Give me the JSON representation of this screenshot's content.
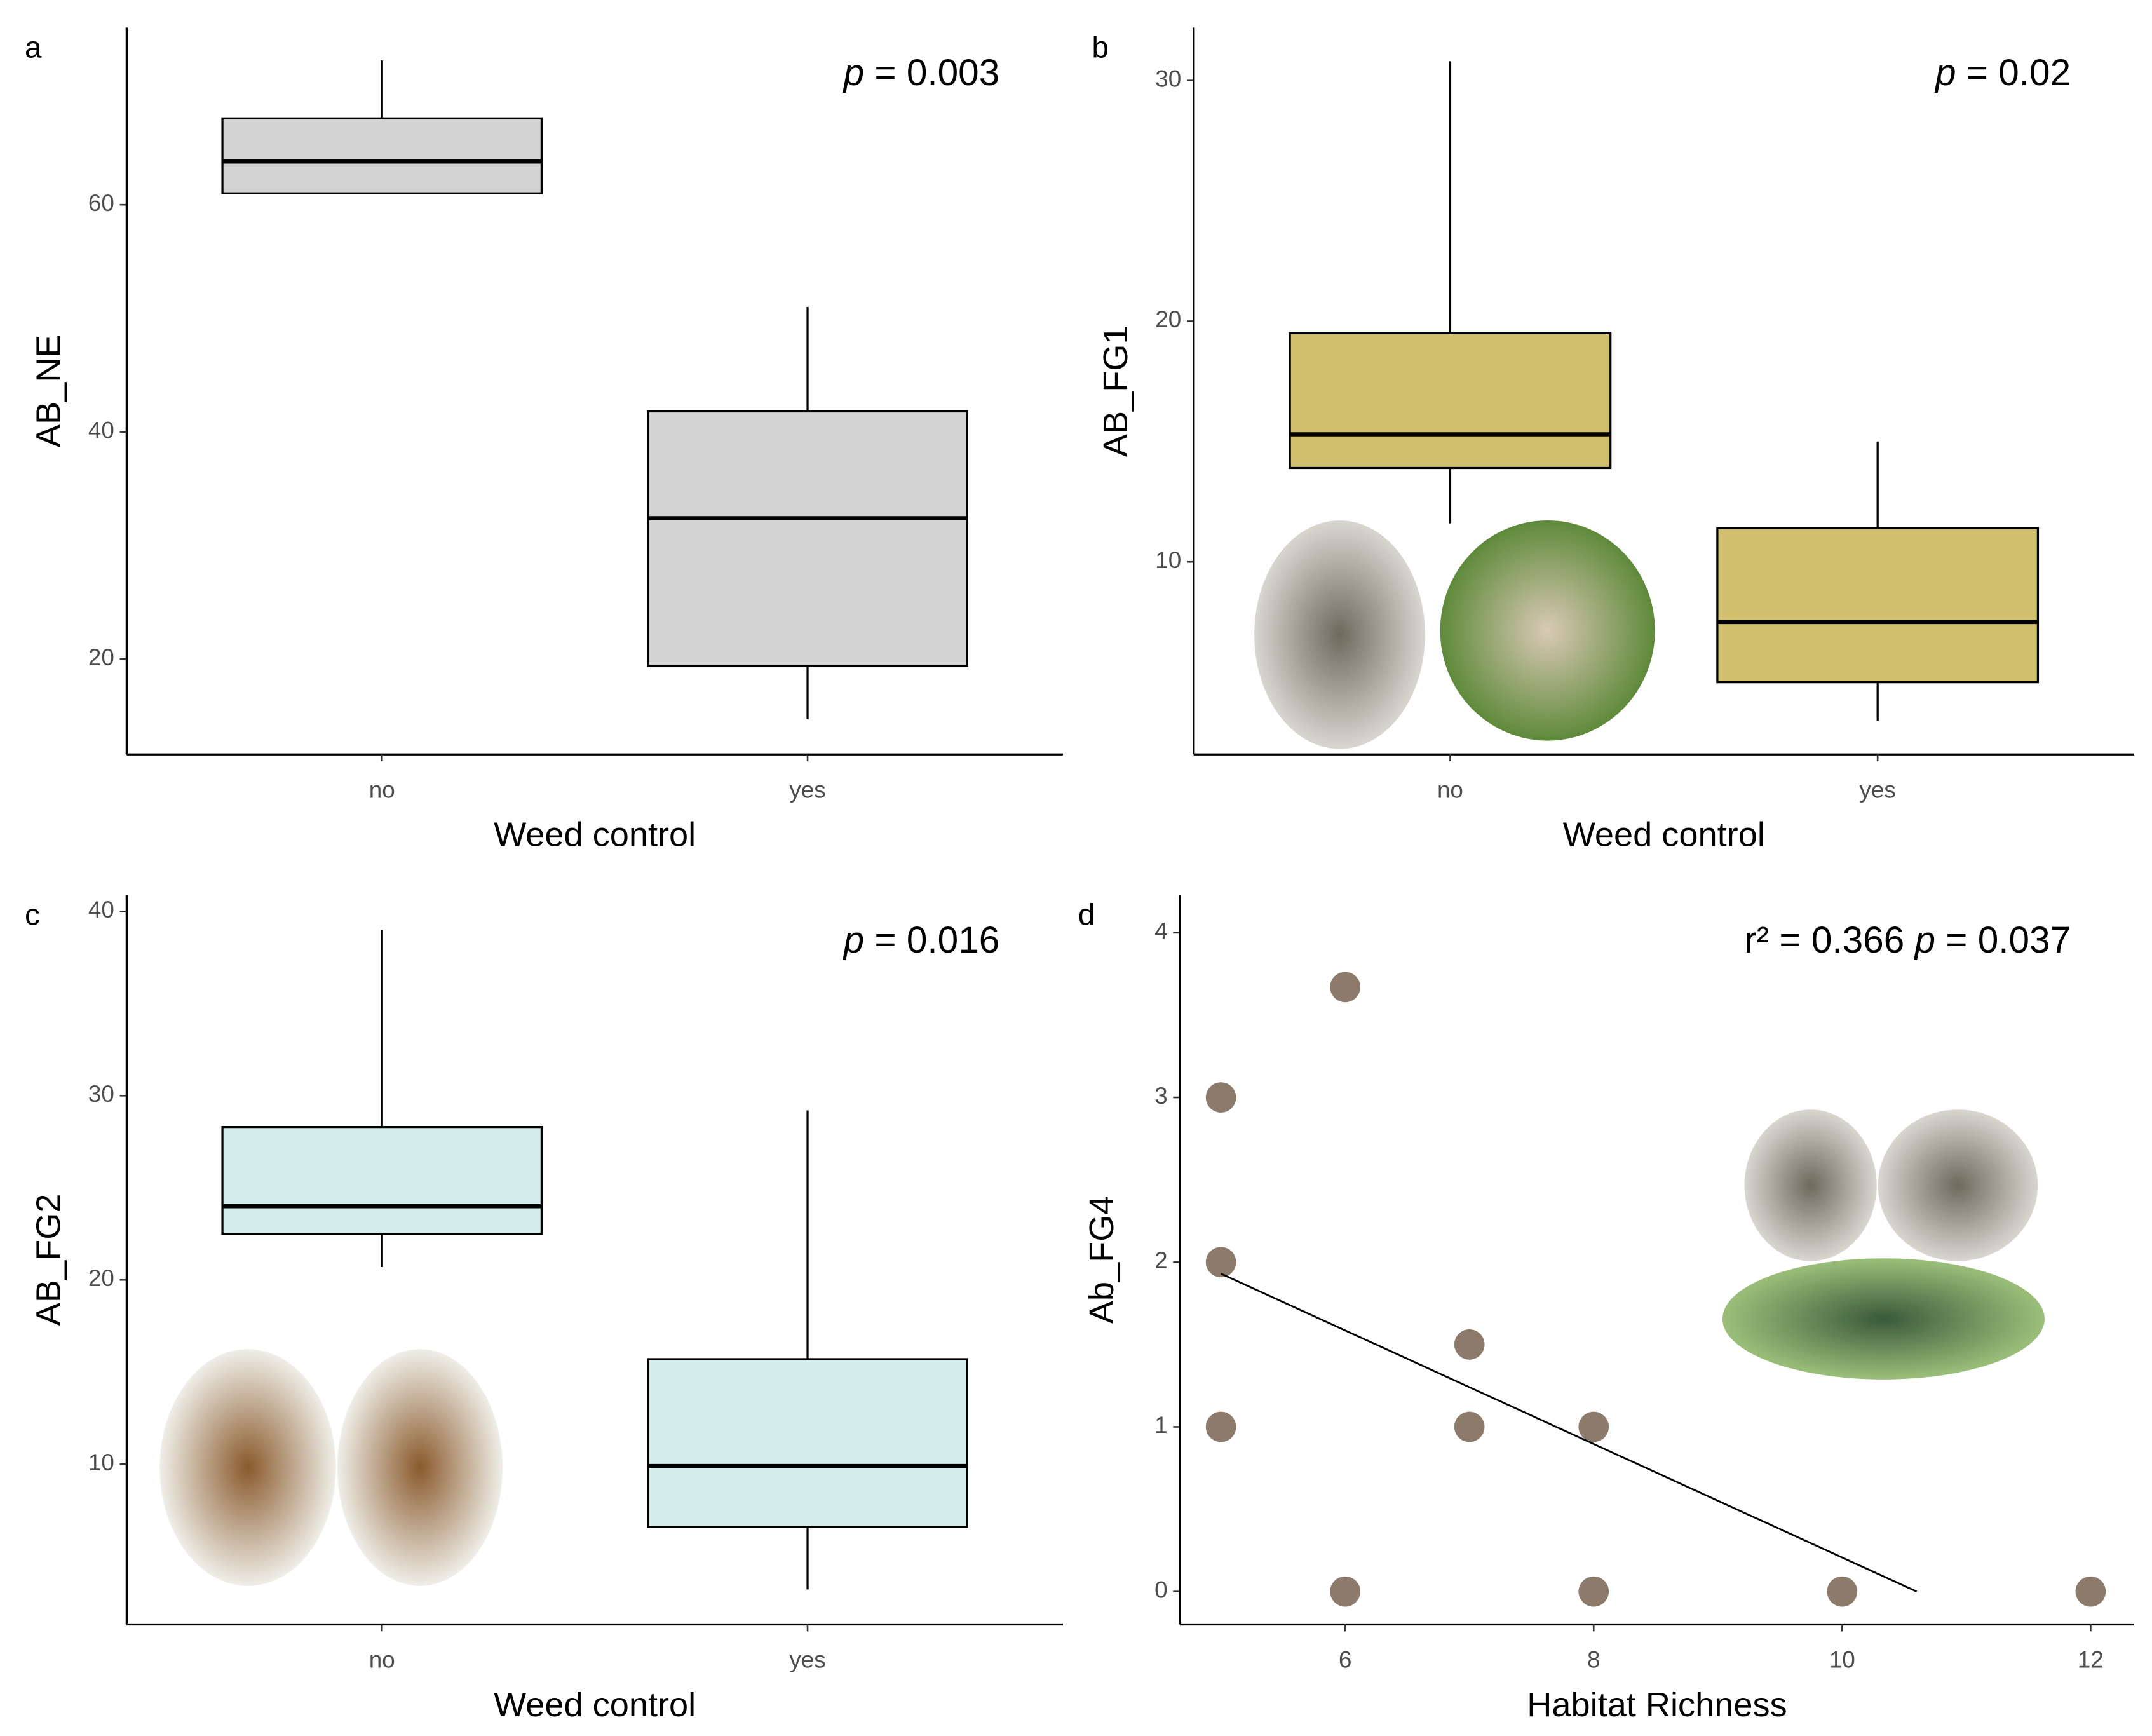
{
  "chart_data": [
    {
      "type": "box",
      "label": "a",
      "annotation": "p = 0.003",
      "x_label": "Weed control",
      "y_label": "AB_NE",
      "categories": [
        "no",
        "yes"
      ],
      "color": "#d3d3d3",
      "values": [
        {
          "min": 61.0,
          "q1": 61.0,
          "median": 63.8,
          "q3": 67.6,
          "max": 72.7
        },
        {
          "min": 14.7,
          "q1": 19.4,
          "median": 32.4,
          "q3": 41.8,
          "max": 51.0
        }
      ],
      "ylim": [
        11.6,
        75.6
      ],
      "yticks": [
        20,
        40,
        60
      ]
    },
    {
      "type": "box",
      "label": "b",
      "annotation": "p = 0.02",
      "x_label": "Weed control",
      "y_label": "AB_FG1",
      "categories": [
        "no",
        "yes"
      ],
      "color": "#cfbf6e",
      "values": [
        {
          "min": 11.6,
          "q1": 13.9,
          "median": 15.3,
          "q3": 19.5,
          "max": 30.8
        },
        {
          "min": 3.4,
          "q1": 5.0,
          "median": 7.5,
          "q3": 11.4,
          "max": 15.0
        }
      ],
      "ylim": [
        2.0,
        32.2
      ],
      "yticks": [
        10,
        20,
        30
      ]
    },
    {
      "type": "box",
      "label": "c",
      "annotation": "p = 0.016",
      "x_label": "Weed control",
      "y_label": "AB_FG2",
      "categories": [
        "no",
        "yes"
      ],
      "color": "#d3ecec",
      "values": [
        {
          "min": 20.7,
          "q1": 22.5,
          "median": 24.0,
          "q3": 28.3,
          "max": 39.0
        },
        {
          "min": 3.2,
          "q1": 6.6,
          "median": 9.9,
          "q3": 15.7,
          "max": 29.2
        }
      ],
      "ylim": [
        1.3,
        40.9
      ],
      "yticks": [
        10,
        20,
        30,
        40
      ]
    },
    {
      "type": "scatter",
      "label": "d",
      "annotation": "r² = 0.366  p = 0.037",
      "x_label": "Habitat Richness",
      "y_label": "Ab_FG4",
      "color": "#8c7a6b",
      "x": [
        5,
        6,
        5,
        5,
        6,
        7,
        7,
        8,
        8,
        10,
        12
      ],
      "y": [
        3,
        3.67,
        2,
        1,
        0,
        1.5,
        1,
        1,
        0,
        0,
        0
      ],
      "trend": {
        "x": [
          5,
          10.6
        ],
        "y": [
          1.93,
          0
        ]
      },
      "xlim": [
        4.67,
        12.35
      ],
      "xticks": [
        6,
        8,
        10,
        12
      ],
      "ylim": [
        -0.2,
        4.23
      ],
      "yticks": [
        0,
        1,
        2,
        3,
        4
      ]
    }
  ]
}
